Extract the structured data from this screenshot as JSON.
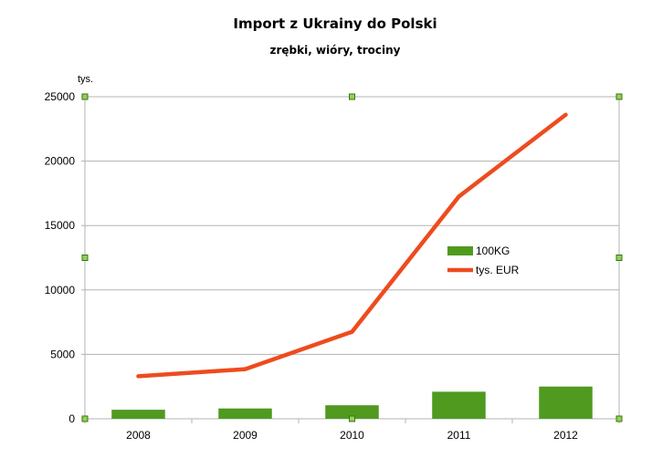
{
  "chart_data": {
    "type": "bar",
    "title": "Import z Ukrainy do Polski",
    "subtitle": "zrębki, wióry, trociny",
    "ylabel": "tys.",
    "categories": [
      "2008",
      "2009",
      "2010",
      "2011",
      "2012"
    ],
    "ylim": [
      0,
      25000
    ],
    "yticks": [
      0,
      5000,
      10000,
      15000,
      20000,
      25000
    ],
    "grid": true,
    "legend_position": "center-right",
    "series": [
      {
        "name": "100KG",
        "kind": "bar",
        "color": "#4f9a1f",
        "values": [
          700,
          800,
          1050,
          2100,
          2500
        ]
      },
      {
        "name": "tys. EUR",
        "kind": "line",
        "color": "#ee4b1e",
        "values": [
          3300,
          3850,
          6750,
          17250,
          23600
        ]
      }
    ]
  }
}
